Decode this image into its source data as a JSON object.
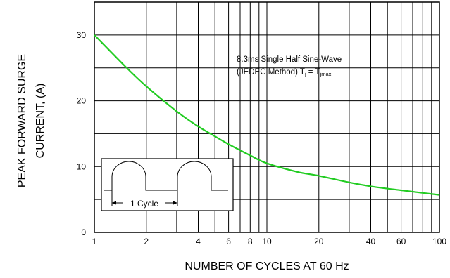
{
  "chart_data": {
    "type": "line",
    "title": "",
    "xlabel": "NUMBER OF CYCLES AT 60 Hz",
    "ylabel_lines": [
      "PEAK FORWARD SURGE",
      "CURRENT, (A)"
    ],
    "x_scale": "log",
    "xlim": [
      1,
      100
    ],
    "ylim": [
      0,
      35
    ],
    "x_ticks": [
      1,
      2,
      4,
      6,
      8,
      10,
      20,
      40,
      60,
      100
    ],
    "x_tick_labels": [
      "1",
      "2",
      "4",
      "6",
      "8",
      "10",
      "20",
      "40",
      "60",
      "100"
    ],
    "y_ticks": [
      0,
      10,
      20,
      30
    ],
    "y_tick_labels": [
      "0",
      "10",
      "20",
      "30"
    ],
    "grid": true,
    "series": [
      {
        "color": "#22cc22",
        "x": [
          1,
          1.5,
          2,
          3,
          4,
          5,
          6,
          8,
          10,
          15,
          20,
          30,
          40,
          60,
          100
        ],
        "y": [
          30,
          25.3,
          22.2,
          18.4,
          16.1,
          14.6,
          13.4,
          11.7,
          10.5,
          9.2,
          8.6,
          7.6,
          7.0,
          6.4,
          5.7
        ]
      }
    ],
    "annotation": {
      "line1": "8.3ms Single Half Sine-Wave",
      "line2_prefix": "(JEDEC Method) T",
      "line2_sub1": "j",
      "line2_mid": " = T",
      "line2_sub2": "jmax"
    },
    "inset": {
      "label": "1 Cycle"
    }
  }
}
